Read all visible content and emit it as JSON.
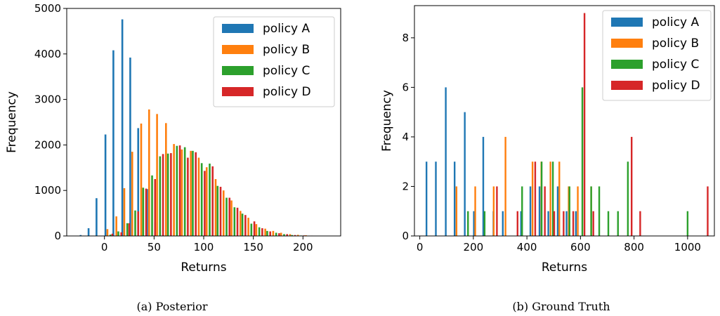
{
  "colors": {
    "policy A": "#1f77b4",
    "policy B": "#ff7f0e",
    "policy C": "#2ca02c",
    "policy D": "#d62728"
  },
  "chart_data": [
    {
      "type": "bar",
      "caption": "(a) Posterior",
      "xlabel": "Returns",
      "ylabel": "Frequency",
      "xlim": [
        -38,
        238
      ],
      "ylim": [
        0,
        5000
      ],
      "xticks": [
        0,
        50,
        100,
        150,
        200
      ],
      "yticks": [
        0,
        1000,
        2000,
        3000,
        4000,
        5000
      ],
      "grid": false,
      "legend": "top-right",
      "series": [
        {
          "name": "policy A",
          "x": [
            -24,
            -16,
            -8,
            1,
            9,
            18,
            26,
            34,
            43,
            51,
            59
          ],
          "values": [
            20,
            170,
            830,
            2230,
            4080,
            4760,
            3920,
            2370,
            1030,
            300,
            40
          ]
        },
        {
          "name": "policy B",
          "x": [
            3,
            12,
            20,
            28,
            37,
            45,
            53,
            62,
            70,
            78,
            87,
            95,
            103,
            112,
            120,
            128,
            137,
            145,
            153,
            162,
            170,
            178,
            187,
            195,
            203,
            212
          ],
          "values": [
            150,
            430,
            1050,
            1850,
            2470,
            2780,
            2680,
            2480,
            2020,
            1900,
            1870,
            1720,
            1510,
            1250,
            1000,
            780,
            550,
            400,
            260,
            160,
            110,
            70,
            40,
            25,
            15,
            5
          ]
        },
        {
          "name": "policy C",
          "x": [
            6,
            14,
            23,
            31,
            39,
            48,
            56,
            64,
            73,
            81,
            89,
            98,
            106,
            114,
            123,
            131,
            139,
            148,
            156,
            164,
            173,
            181,
            189,
            198,
            206,
            214
          ],
          "values": [
            30,
            100,
            280,
            560,
            1060,
            1330,
            1750,
            1810,
            1980,
            1950,
            1870,
            1600,
            1590,
            1100,
            840,
            630,
            490,
            270,
            190,
            110,
            70,
            40,
            20,
            10,
            5,
            2
          ]
        },
        {
          "name": "policy D",
          "x": [
            8,
            17,
            25,
            34,
            42,
            51,
            59,
            67,
            76,
            84,
            92,
            101,
            109,
            117,
            126,
            134,
            142,
            151,
            159,
            167,
            176,
            184,
            192,
            201,
            209,
            217,
            226
          ],
          "values": [
            50,
            80,
            280,
            540,
            1040,
            1250,
            1800,
            1820,
            1990,
            1720,
            1840,
            1430,
            1530,
            1080,
            840,
            620,
            460,
            320,
            170,
            100,
            60,
            40,
            20,
            12,
            8,
            4,
            3
          ]
        }
      ]
    },
    {
      "type": "bar",
      "caption": "(b) Ground Truth",
      "xlabel": "Returns",
      "ylabel": "Frequency",
      "xlim": [
        -20,
        1100
      ],
      "ylim": [
        0,
        9.3
      ],
      "xticks": [
        0,
        200,
        400,
        600,
        800,
        1000
      ],
      "yticks": [
        0,
        2,
        4,
        6,
        8
      ],
      "grid": false,
      "legend": "top-right",
      "series": [
        {
          "name": "policy A",
          "x": [
            25,
            60,
            97,
            130,
            168,
            202,
            237,
            275,
            310,
            378,
            413,
            447,
            480,
            515,
            548,
            583
          ],
          "values": [
            3,
            3,
            6,
            3,
            5,
            1,
            4,
            1,
            1,
            1,
            2,
            2,
            1,
            2,
            1,
            1
          ]
        },
        {
          "name": "policy B",
          "x": [
            137,
            207,
            276,
            320,
            421,
            454,
            488,
            521,
            556,
            590,
            640
          ],
          "values": [
            2,
            2,
            2,
            4,
            3,
            3,
            3,
            3,
            2,
            2,
            2
          ]
        },
        {
          "name": "policy C",
          "x": [
            180,
            242,
            382,
            455,
            497,
            559,
            607,
            640,
            670,
            704,
            740,
            777,
            1000
          ],
          "values": [
            1,
            1,
            2,
            3,
            3,
            2,
            6,
            2,
            2,
            1,
            1,
            3,
            1
          ]
        },
        {
          "name": "policy D",
          "x": [
            288,
            365,
            431,
            467,
            502,
            537,
            573,
            615,
            648,
            791,
            823,
            1075
          ],
          "values": [
            2,
            1,
            3,
            2,
            1,
            1,
            1,
            9,
            1,
            4,
            1,
            2
          ]
        }
      ]
    }
  ]
}
